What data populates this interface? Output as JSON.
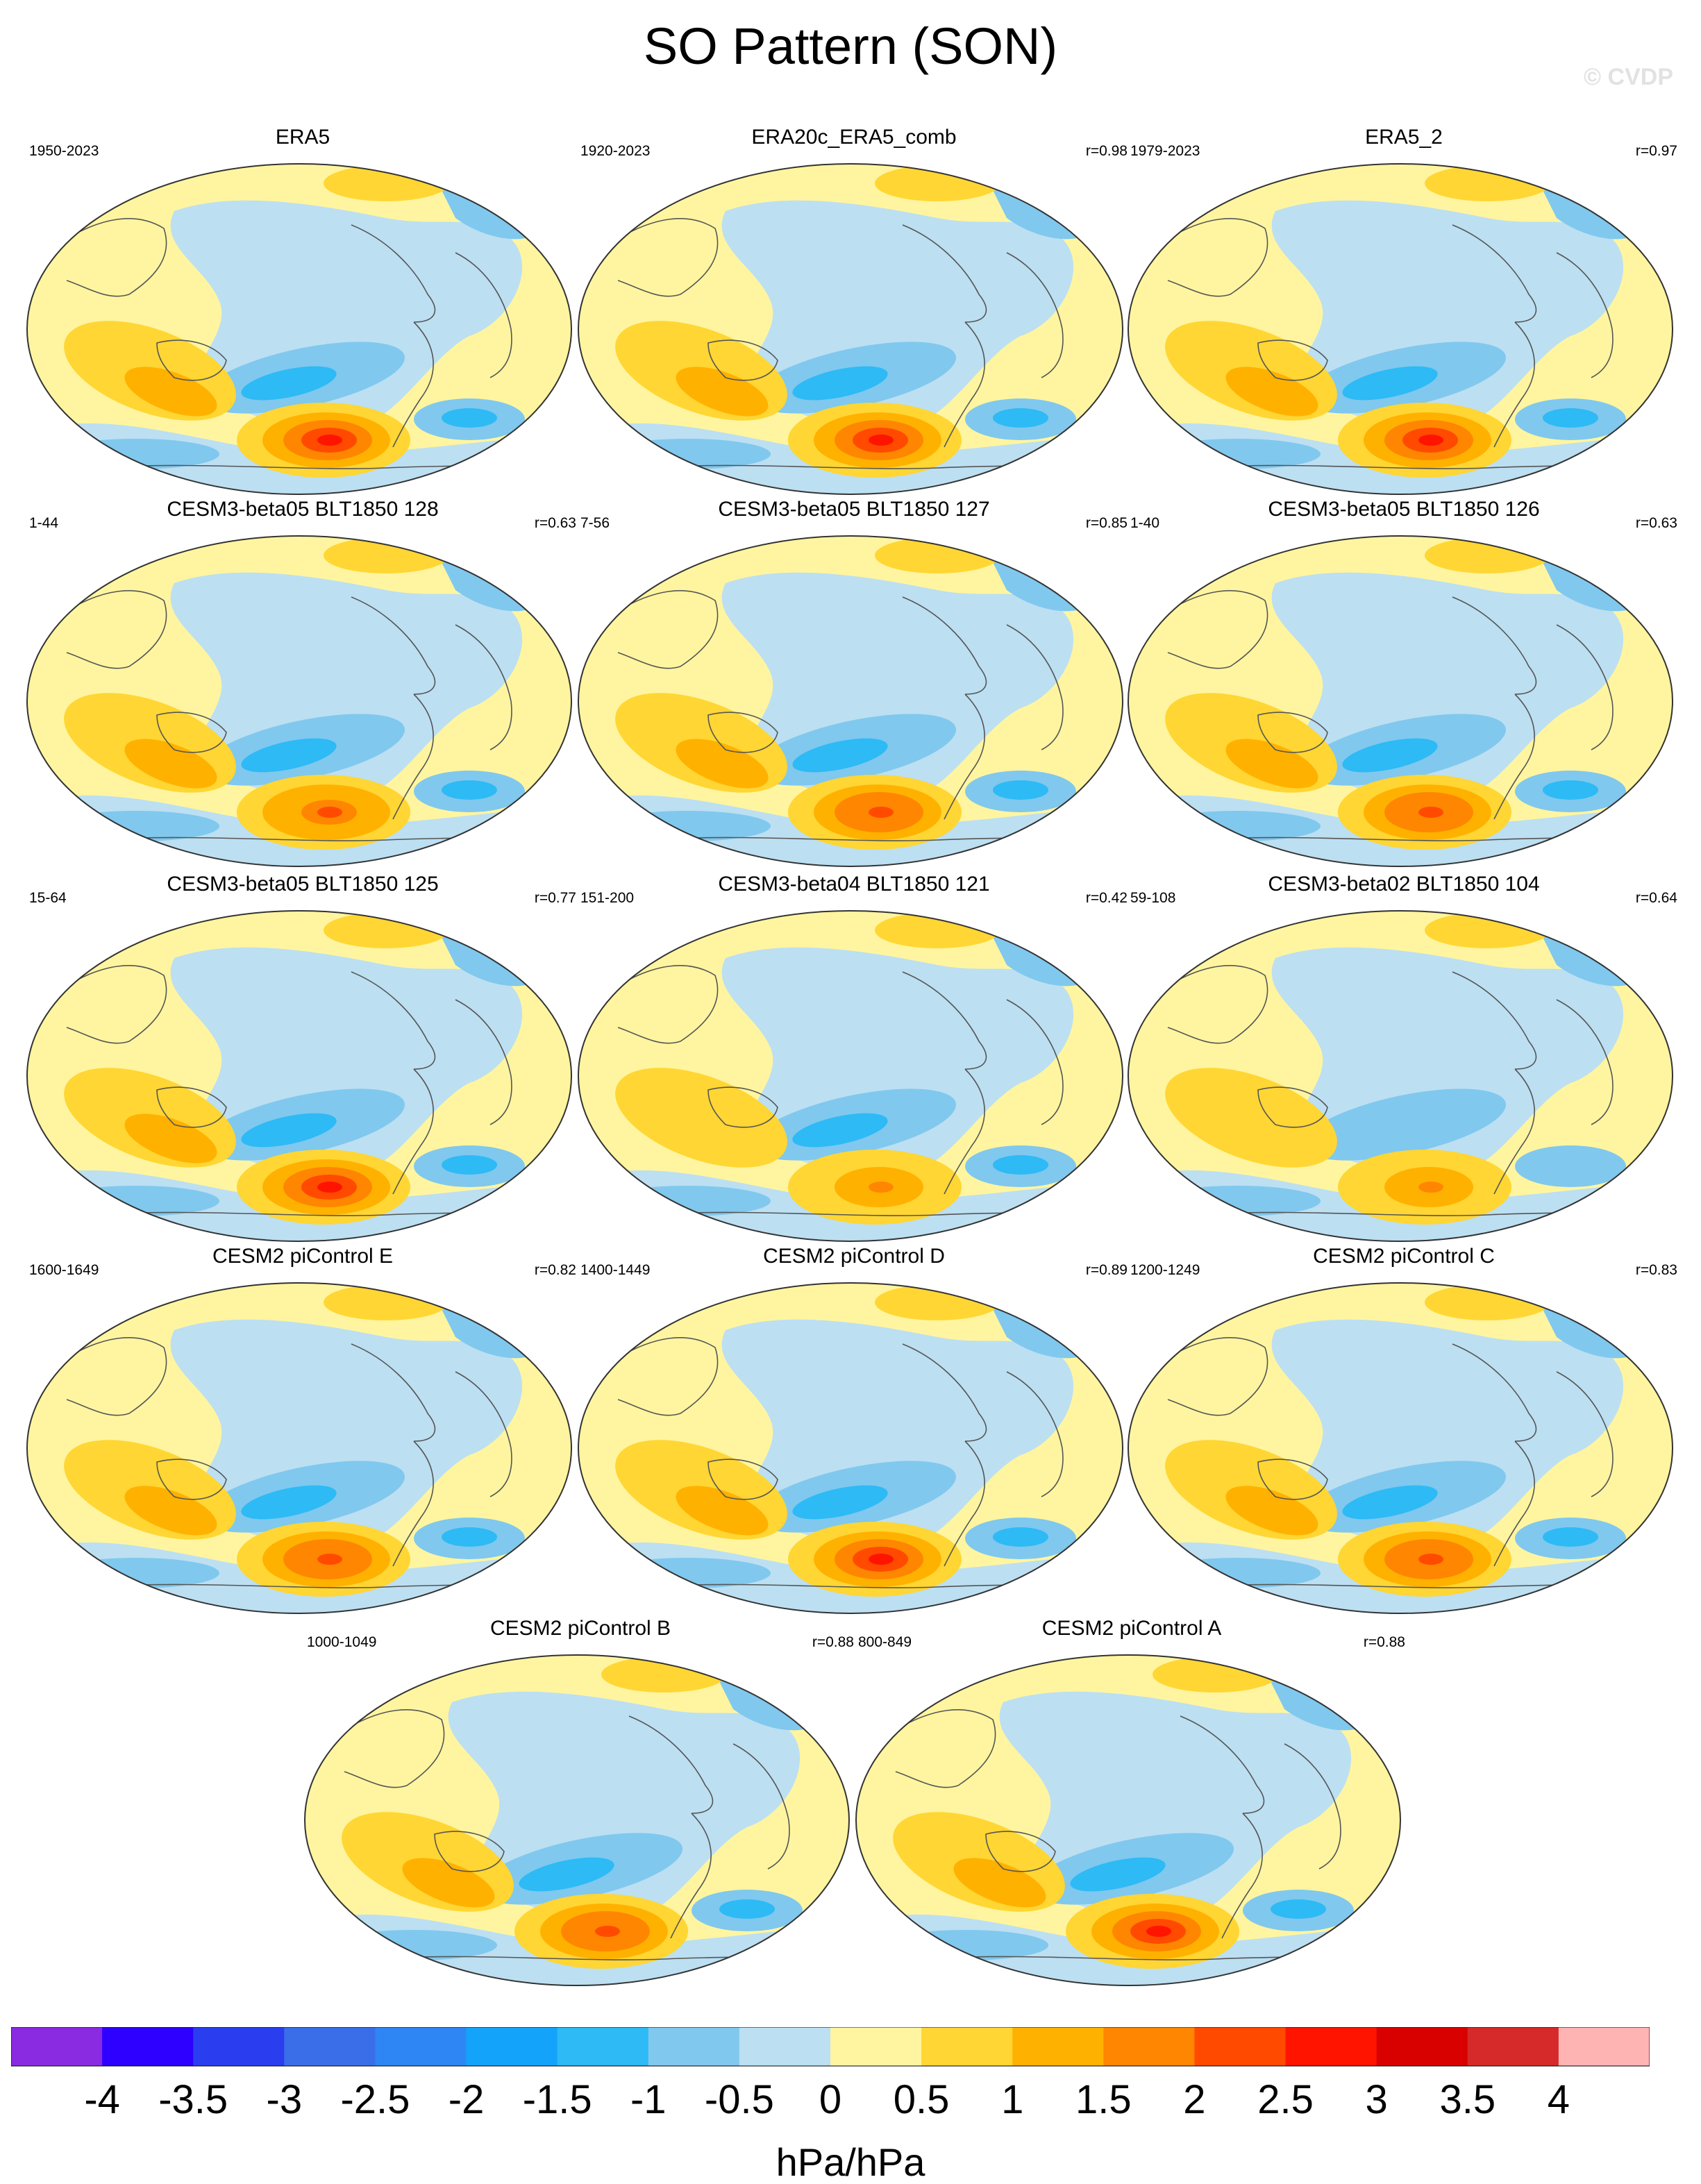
{
  "title": "SO Pattern (SON)",
  "watermark": "© CVDP",
  "panels": [
    {
      "name": "ERA5",
      "years": "1950-2023",
      "r": "",
      "low_strength": 0.95,
      "high_strength": 1.0
    },
    {
      "name": "ERA20c_ERA5_comb",
      "years": "1920-2023",
      "r": "r=0.98",
      "low_strength": 0.9,
      "high_strength": 1.0
    },
    {
      "name": "ERA5_2",
      "years": "1979-2023",
      "r": "r=0.97",
      "low_strength": 0.95,
      "high_strength": 1.0
    },
    {
      "name": "CESM3-beta05 BLT1850 128",
      "years": "1-44",
      "r": "r=0.63",
      "low_strength": 0.75,
      "high_strength": 0.75
    },
    {
      "name": "CESM3-beta05 BLT1850 127",
      "years": "7-56",
      "r": "r=0.85",
      "low_strength": 0.9,
      "high_strength": 0.85
    },
    {
      "name": "CESM3-beta05 BLT1850 126",
      "years": "1-40",
      "r": "r=0.63",
      "low_strength": 0.9,
      "high_strength": 0.85
    },
    {
      "name": "CESM3-beta05 BLT1850 125",
      "years": "15-64",
      "r": "r=0.77",
      "low_strength": 0.85,
      "high_strength": 0.9
    },
    {
      "name": "CESM3-beta04 BLT1850 121",
      "years": "151-200",
      "r": "r=0.42",
      "low_strength": 1.0,
      "high_strength": 0.5
    },
    {
      "name": "CESM3-beta02 BLT1850 104",
      "years": "59-108",
      "r": "r=0.64",
      "low_strength": 0.7,
      "high_strength": 0.5
    },
    {
      "name": "CESM2 piControl E",
      "years": "1600-1649",
      "r": "r=0.82",
      "low_strength": 0.85,
      "high_strength": 0.85
    },
    {
      "name": "CESM2 piControl D",
      "years": "1400-1449",
      "r": "r=0.89",
      "low_strength": 0.8,
      "high_strength": 0.9
    },
    {
      "name": "CESM2 piControl C",
      "years": "1200-1249",
      "r": "r=0.83",
      "low_strength": 0.85,
      "high_strength": 0.85
    },
    {
      "name": "CESM2 piControl B",
      "years": "1000-1049",
      "r": "r=0.88",
      "low_strength": 0.8,
      "high_strength": 0.85
    },
    {
      "name": "CESM2 piControl A",
      "years": "800-849",
      "r": "r=0.88",
      "low_strength": 0.85,
      "high_strength": 0.9
    }
  ],
  "colorbar": {
    "unit": "hPa/hPa",
    "labels": [
      "-4",
      "-3.5",
      "-3",
      "-2.5",
      "-2",
      "-1.5",
      "-1",
      "-0.5",
      "0",
      "0.5",
      "1",
      "1.5",
      "2",
      "2.5",
      "3",
      "3.5",
      "4"
    ],
    "colors": [
      "#8a2be2",
      "#2d00ff",
      "#2a3ef0",
      "#3a6ee8",
      "#2e86f4",
      "#14a3fa",
      "#2dbaf5",
      "#80c8ee",
      "#bcdff2",
      "#fff5a0",
      "#ffd633",
      "#ffb100",
      "#ff8600",
      "#ff4a00",
      "#ff1400",
      "#d90000",
      "#d62a2a",
      "#ffb4b4"
    ]
  }
}
